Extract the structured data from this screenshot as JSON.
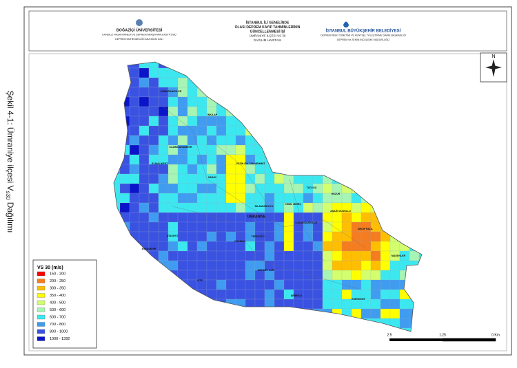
{
  "header": {
    "left": [
      "BOĞAZİÇİ ÜNİVERSİTESİ",
      "KANDİLLİ RASATHANESİ VE DEPREM ARAŞTIRMA ENSTİTÜSÜ",
      "DEPREM MÜHENDİSLİĞİ ANA BİLİM DALI"
    ],
    "center": [
      "İSTANBUL İLİ GENELİNDE",
      "OLASI DEPREM KAYIP TAHMİNLERİNİN",
      "GÜNCELLENMESİ İŞİ",
      "ÜMRANİYE İLÇESİ VS 30",
      "DAĞILIM HARİTASI"
    ],
    "right": [
      "İSTANBUL BÜYÜKŞEHİR BELEDİYESİ",
      "DEPREM RİSK YÖNETİMİ VE KENTSEL İYİLEŞTİRME DAİRE BAŞKANLIĞI",
      "DEPREM ve ZEMİN İNCELEME MÜDÜRLÜĞÜ"
    ]
  },
  "caption": {
    "before": "Şekil 4-1: Ümraniye ilçesi V",
    "subscript": "s30",
    "after": " Dağılımı"
  },
  "legend": {
    "title": "VS 30 (m/s)",
    "items": [
      {
        "label": "150 - 200",
        "color": "#ff0000"
      },
      {
        "label": "200 - 250",
        "color": "#f57c1f"
      },
      {
        "label": "300 - 350",
        "color": "#ffbf00"
      },
      {
        "label": "350 - 400",
        "color": "#ffff00"
      },
      {
        "label": "400 - 500",
        "color": "#d3ff6e"
      },
      {
        "label": "500 - 600",
        "color": "#a6f5b4"
      },
      {
        "label": "600 - 700",
        "color": "#3ce8f0"
      },
      {
        "label": "700 - 800",
        "color": "#3f9cf0"
      },
      {
        "label": "800 - 1000",
        "color": "#3a52e2"
      },
      {
        "label": "1000 - 1392",
        "color": "#0a14c8"
      }
    ]
  },
  "north": "N",
  "scale": [
    "2.5",
    "1.25",
    "0 Km"
  ],
  "neighborhoods": [
    "ARMAĞANEVLER",
    "İNKILAP",
    "KAZIMKARABEKİR",
    "ELMALIKENT",
    "SARAY",
    "FATİH SULTAN MEHMET",
    "TATLISU",
    "HUZUR",
    "CEMİL MERİÇ",
    "İHLAMURKUYU",
    "ÜMRANİYE",
    "AŞAĞI DUDULLU",
    "NECİP FAZIL",
    "YUKARI DUDULLU",
    "ATAKENT",
    "ESENŞEHİR",
    "ÇAKMAK",
    "TEPEÜSTÜ",
    "MADENLER",
    "MEHMET AKİF",
    "SİTE",
    "ŞERİFALİ",
    "ESENKENT"
  ]
}
